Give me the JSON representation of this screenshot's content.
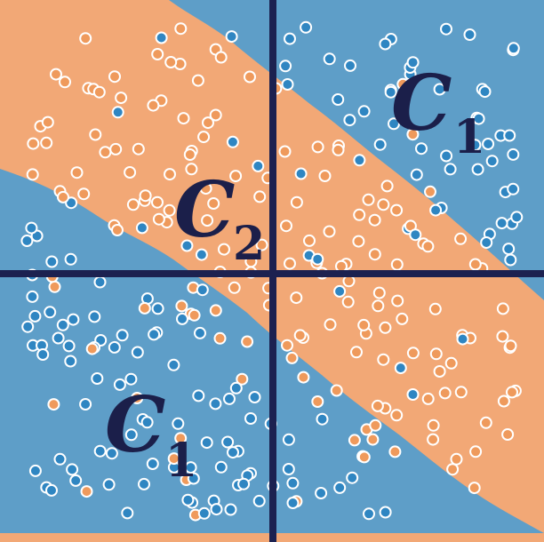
{
  "colors": {
    "blue_region": "#5e9ec8",
    "orange_region": "#f2a876",
    "blue_point": "#2f86c2",
    "orange_point": "#ef9a5c",
    "point_stroke": "#ffffff",
    "axis": "#1c2150",
    "label": "#1b1f4a"
  },
  "labels": {
    "c1_top_right": {
      "main": "C",
      "sub": "1"
    },
    "c2_center": {
      "main": "C",
      "sub": "2"
    },
    "c1_bottom_left": {
      "main": "C",
      "sub": "1"
    }
  }
}
